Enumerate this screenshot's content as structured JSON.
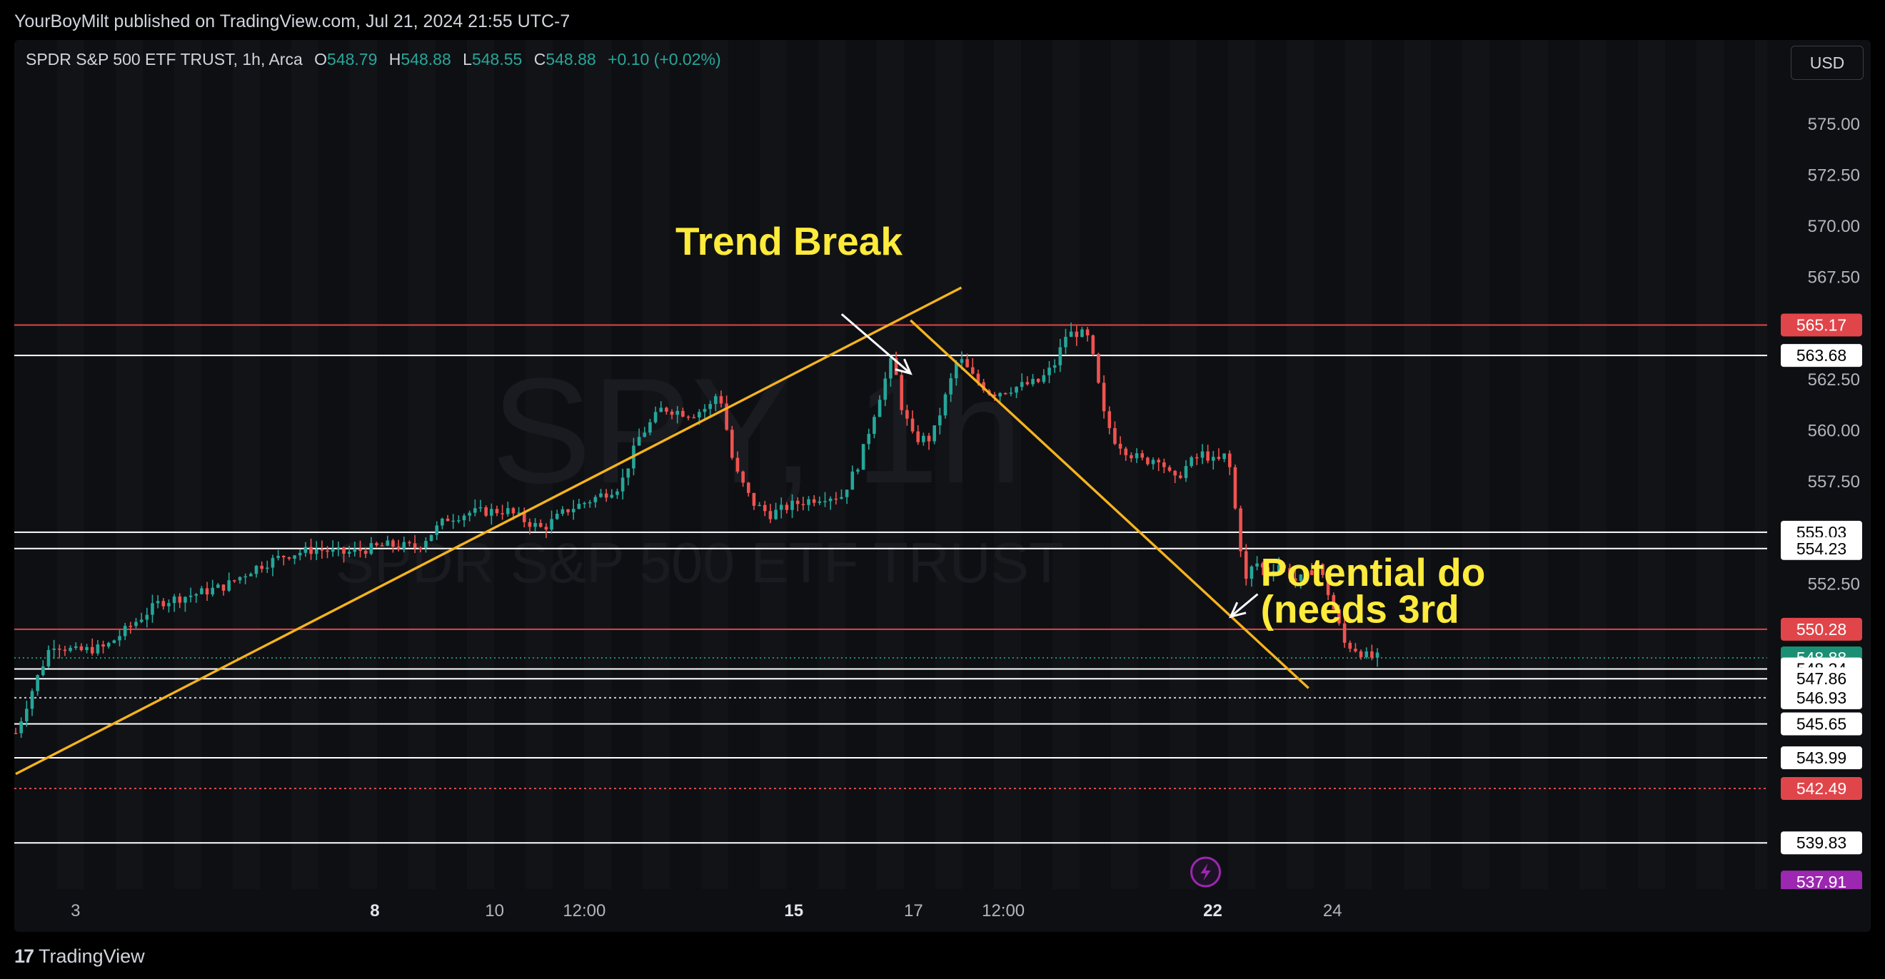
{
  "header": {
    "publisher": "YourBoyMilt published on TradingView.com, Jul 21, 2024 21:55 UTC-7"
  },
  "legend": {
    "symbol": "SPDR S&P 500 ETF TRUST, 1h, Arca",
    "open_label": "O",
    "open": "548.79",
    "high_label": "H",
    "high": "548.88",
    "low_label": "L",
    "low": "548.55",
    "close_label": "C",
    "close": "548.88",
    "change": "+0.10 (+0.02%)"
  },
  "toolbar": {
    "currency": "USD"
  },
  "footer": {
    "brand": "TradingView",
    "logo_glyph": "17"
  },
  "watermark": {
    "ticker": "SPY, 1h",
    "name": "SPDR S&P 500 ETF TRUST"
  },
  "colors": {
    "up": "#26a69a",
    "down": "#ef5350",
    "trendline": "#f5b31f",
    "resistance": "#e0454a",
    "support": "#ffffff",
    "annotation": "#ffeb3b",
    "last_price": "#1b8f74",
    "alert": "#9c27b0"
  },
  "chart_data": {
    "type": "candlestick",
    "interval": "1h",
    "symbol": "SPY",
    "ylim": [
      537.0,
      578.0
    ],
    "y_ticks": [
      "575.00",
      "572.50",
      "570.00",
      "567.50",
      "562.50",
      "560.00",
      "557.50",
      "552.50"
    ],
    "x_ticks": [
      {
        "label": "3",
        "x": 3
      },
      {
        "label": "8",
        "x": 8
      },
      {
        "label": "10",
        "x": 10
      },
      {
        "label": "12:00",
        "x": 11.5
      },
      {
        "label": "15",
        "x": 15
      },
      {
        "label": "17",
        "x": 17
      },
      {
        "label": "12:00",
        "x": 18.5
      },
      {
        "label": "22",
        "x": 22
      },
      {
        "label": "24",
        "x": 24
      }
    ],
    "bold_ticks": [
      "8",
      "15",
      "22"
    ],
    "price_levels": [
      {
        "price": 565.17,
        "label": "565.17",
        "kind": "red-line"
      },
      {
        "price": 563.68,
        "label": "563.68",
        "kind": "white-line"
      },
      {
        "price": 555.03,
        "label": "555.03",
        "kind": "white-line"
      },
      {
        "price": 554.23,
        "label": "554.23",
        "kind": "white-line"
      },
      {
        "price": 550.28,
        "label": "550.28",
        "kind": "red-line"
      },
      {
        "price": 548.88,
        "label": "548.88",
        "kind": "last-price"
      },
      {
        "price": 548.34,
        "label": "548.34",
        "kind": "white-line"
      },
      {
        "price": 547.86,
        "label": "547.86",
        "kind": "white-line"
      },
      {
        "price": 546.93,
        "label": "546.93",
        "kind": "dotted"
      },
      {
        "price": 545.65,
        "label": "545.65",
        "kind": "white-line"
      },
      {
        "price": 543.99,
        "label": "543.99",
        "kind": "white-line"
      },
      {
        "price": 542.49,
        "label": "542.49",
        "kind": "red-dotted"
      },
      {
        "price": 539.83,
        "label": "539.83",
        "kind": "white-line"
      },
      {
        "price": 537.91,
        "label": "537.91",
        "kind": "alert"
      }
    ],
    "trendlines": [
      {
        "from": [
          2.0,
          543.2
        ],
        "to": [
          17.8,
          567.0
        ]
      },
      {
        "from": [
          16.95,
          565.4
        ],
        "to": [
          23.6,
          547.4
        ]
      }
    ],
    "annotations": [
      {
        "text": "Trend Break",
        "at": [
          16.3,
          568.6
        ]
      },
      {
        "text": "Potential do",
        "at": [
          22.8,
          552.4
        ]
      },
      {
        "text": "(needs 3rd",
        "at": [
          22.8,
          550.6
        ]
      }
    ],
    "arrows": [
      {
        "from": [
          15.8,
          565.7
        ],
        "to": [
          16.95,
          562.8
        ]
      },
      {
        "from": [
          22.75,
          552.0
        ],
        "to": [
          22.3,
          550.9
        ]
      }
    ],
    "keypoints": [
      [
        2.0,
        545.2
      ],
      [
        2.3,
        547.5
      ],
      [
        2.6,
        549.6
      ],
      [
        3.0,
        549.2
      ],
      [
        3.5,
        549.4
      ],
      [
        3.9,
        550.4
      ],
      [
        4.4,
        551.6
      ],
      [
        5.0,
        552.0
      ],
      [
        5.5,
        552.4
      ],
      [
        6.0,
        553.3
      ],
      [
        6.5,
        553.9
      ],
      [
        7.0,
        554.2
      ],
      [
        7.5,
        554.0
      ],
      [
        8.2,
        554.4
      ],
      [
        8.7,
        554.3
      ],
      [
        9.2,
        555.7
      ],
      [
        9.6,
        556.0
      ],
      [
        10.2,
        556.1
      ],
      [
        10.5,
        555.6
      ],
      [
        10.8,
        555.2
      ],
      [
        11.2,
        556.1
      ],
      [
        11.6,
        556.6
      ],
      [
        12.1,
        557.3
      ],
      [
        12.4,
        559.6
      ],
      [
        12.8,
        561.1
      ],
      [
        13.3,
        560.8
      ],
      [
        13.6,
        561.2
      ],
      [
        13.75,
        562.0
      ],
      [
        14.0,
        558.2
      ],
      [
        14.3,
        556.5
      ],
      [
        14.6,
        555.9
      ],
      [
        15.0,
        556.4
      ],
      [
        15.5,
        556.8
      ],
      [
        15.8,
        556.8
      ],
      [
        16.1,
        558.5
      ],
      [
        16.4,
        561.4
      ],
      [
        16.65,
        563.6
      ],
      [
        16.8,
        561.2
      ],
      [
        17.0,
        559.6
      ],
      [
        17.3,
        559.6
      ],
      [
        17.55,
        561.8
      ],
      [
        17.75,
        563.6
      ],
      [
        18.0,
        562.6
      ],
      [
        18.3,
        561.8
      ],
      [
        18.55,
        562.0
      ],
      [
        18.8,
        562.2
      ],
      [
        19.1,
        562.4
      ],
      [
        19.35,
        563.2
      ],
      [
        19.55,
        564.7
      ],
      [
        19.75,
        564.8
      ],
      [
        19.9,
        564.6
      ],
      [
        20.05,
        563.0
      ],
      [
        20.15,
        561.0
      ],
      [
        20.35,
        559.6
      ],
      [
        20.6,
        558.9
      ],
      [
        20.85,
        558.5
      ],
      [
        21.1,
        558.7
      ],
      [
        21.35,
        557.5
      ],
      [
        21.6,
        558.4
      ],
      [
        21.85,
        558.9
      ],
      [
        22.05,
        558.4
      ],
      [
        22.25,
        558.9
      ],
      [
        22.4,
        555.6
      ],
      [
        22.55,
        552.6
      ],
      [
        22.7,
        553.6
      ],
      [
        22.9,
        553.1
      ],
      [
        23.1,
        553.5
      ],
      [
        23.4,
        552.6
      ],
      [
        23.6,
        553.0
      ],
      [
        23.75,
        553.5
      ],
      [
        23.9,
        552.3
      ],
      [
        24.05,
        551.0
      ],
      [
        24.2,
        549.6
      ],
      [
        24.4,
        549.3
      ],
      [
        24.6,
        548.9
      ],
      [
        24.75,
        548.9
      ]
    ]
  }
}
